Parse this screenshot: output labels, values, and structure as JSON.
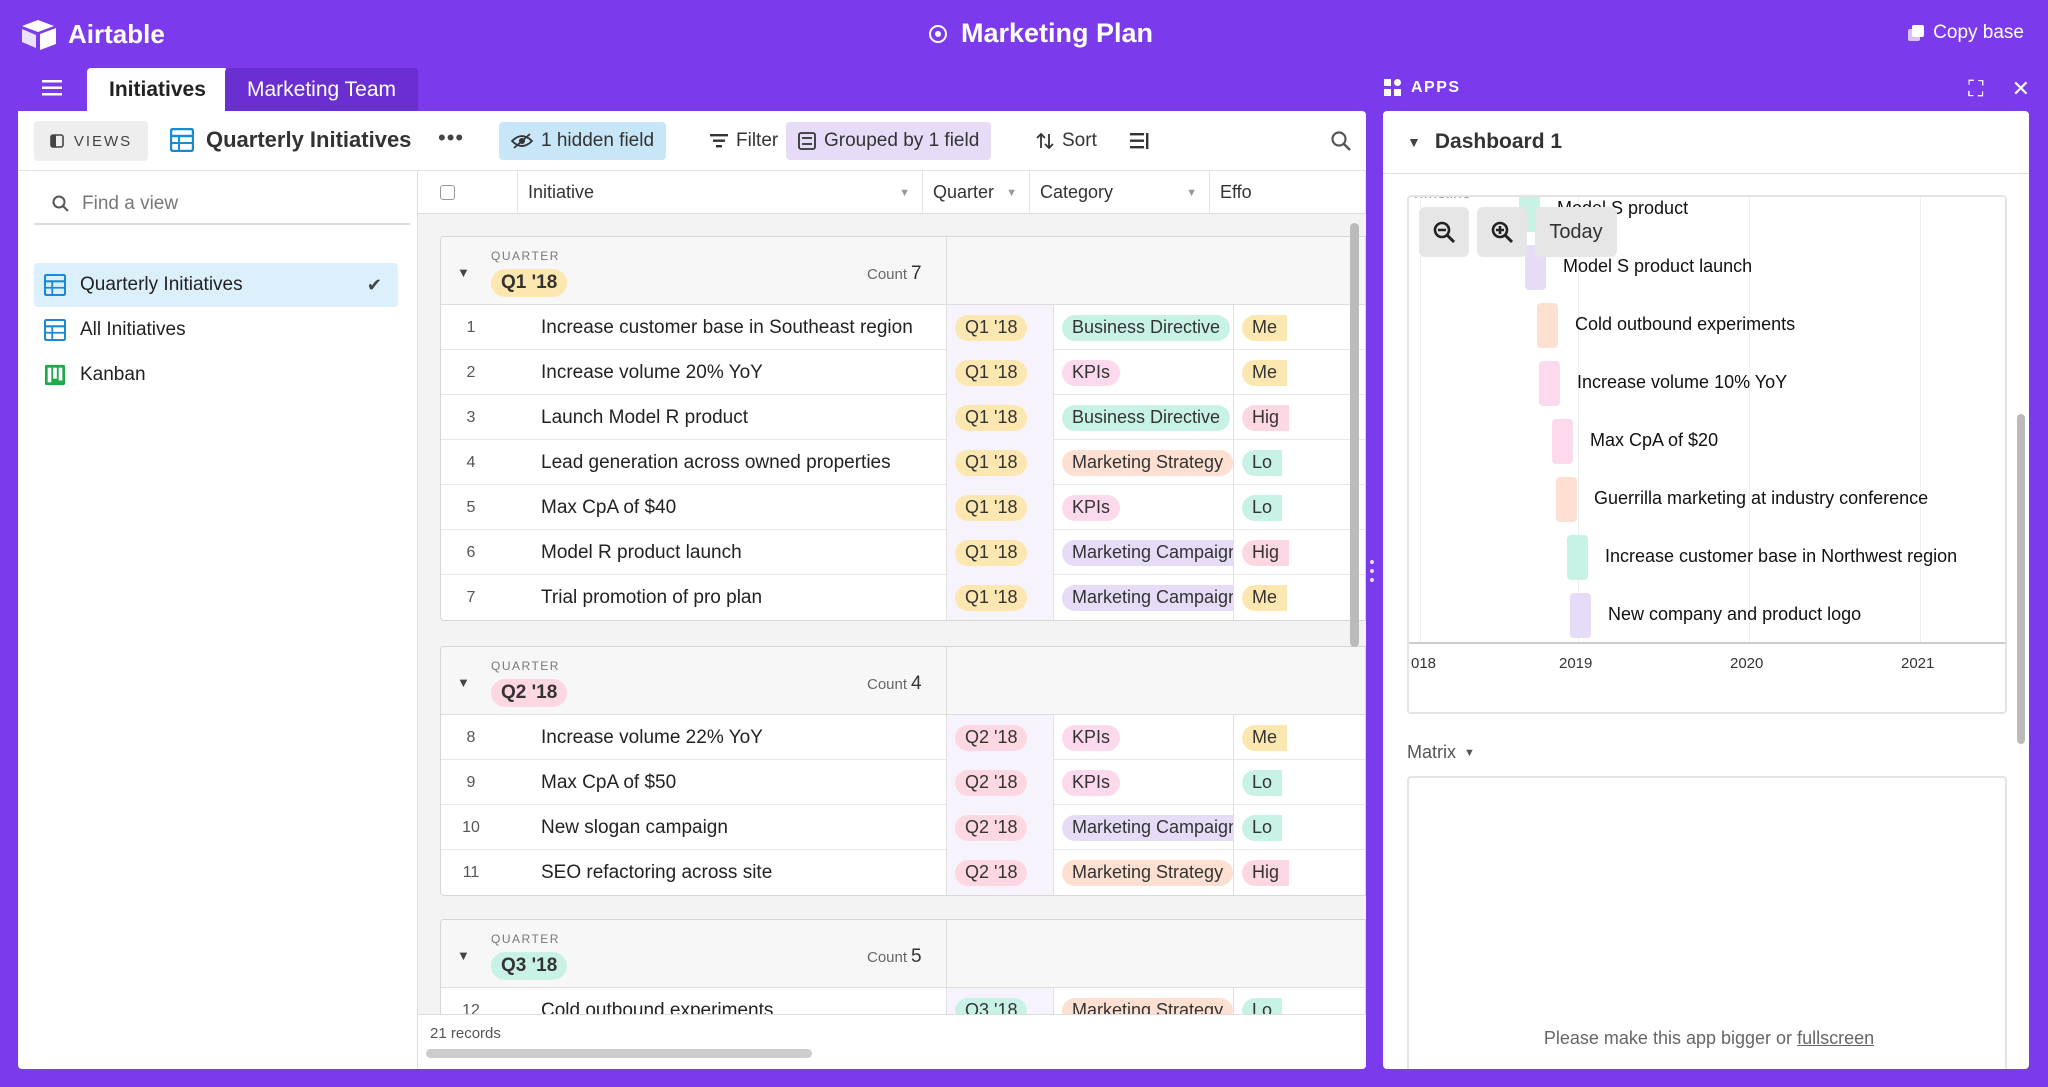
{
  "app": {
    "name": "Airtable",
    "base_title": "Marketing Plan",
    "copy_base": "Copy base"
  },
  "tabs": [
    {
      "label": "Initiatives",
      "active": true
    },
    {
      "label": "Marketing Team",
      "active": false
    }
  ],
  "toolbar": {
    "views": "VIEWS",
    "view_name": "Quarterly Initiatives",
    "hidden": "1 hidden field",
    "filter": "Filter",
    "grouped": "Grouped by 1 field",
    "sort": "Sort"
  },
  "sidebar": {
    "find_placeholder": "Find a view",
    "views": [
      {
        "label": "Quarterly Initiatives",
        "selected": true,
        "icon": "grid-icon"
      },
      {
        "label": "All Initiatives",
        "selected": false,
        "icon": "grid-icon"
      },
      {
        "label": "Kanban",
        "selected": false,
        "icon": "kanban-icon"
      }
    ]
  },
  "grid": {
    "columns": [
      "Initiative",
      "Quarter",
      "Category",
      "Effo"
    ],
    "group_label": "QUARTER",
    "count_label": "Count",
    "records": "21 records",
    "groups": [
      {
        "quarter": "Q1 '18",
        "count": "7",
        "color": "#fde7b0",
        "rows": [
          {
            "n": "1",
            "initiative": "Increase customer base in Southeast region",
            "quarter": "Q1 '18",
            "category": "Business Directive",
            "effort": "Me"
          },
          {
            "n": "2",
            "initiative": "Increase volume 20% YoY",
            "quarter": "Q1 '18",
            "category": "KPIs",
            "effort": "Me"
          },
          {
            "n": "3",
            "initiative": "Launch Model R product",
            "quarter": "Q1 '18",
            "category": "Business Directive",
            "effort": "Hig"
          },
          {
            "n": "4",
            "initiative": "Lead generation across owned properties",
            "quarter": "Q1 '18",
            "category": "Marketing Strategy",
            "effort": "Lo"
          },
          {
            "n": "5",
            "initiative": "Max CpA of $40",
            "quarter": "Q1 '18",
            "category": "KPIs",
            "effort": "Lo"
          },
          {
            "n": "6",
            "initiative": "Model R product launch",
            "quarter": "Q1 '18",
            "category": "Marketing Campaigns",
            "effort": "Hig"
          },
          {
            "n": "7",
            "initiative": "Trial promotion of pro plan",
            "quarter": "Q1 '18",
            "category": "Marketing Campaigns",
            "effort": "Me"
          }
        ]
      },
      {
        "quarter": "Q2 '18",
        "count": "4",
        "color": "#fdd7e1",
        "rows": [
          {
            "n": "8",
            "initiative": "Increase volume 22% YoY",
            "quarter": "Q2 '18",
            "category": "KPIs",
            "effort": "Me"
          },
          {
            "n": "9",
            "initiative": "Max CpA of $50",
            "quarter": "Q2 '18",
            "category": "KPIs",
            "effort": "Lo"
          },
          {
            "n": "10",
            "initiative": "New slogan campaign",
            "quarter": "Q2 '18",
            "category": "Marketing Campaigns",
            "effort": "Lo"
          },
          {
            "n": "11",
            "initiative": "SEO refactoring across site",
            "quarter": "Q2 '18",
            "category": "Marketing Strategy",
            "effort": "Hig"
          }
        ]
      },
      {
        "quarter": "Q3 '18",
        "count": "5",
        "color": "#c9f2e6",
        "rows": [
          {
            "n": "12",
            "initiative": "Cold outbound experiments",
            "quarter": "Q3 '18",
            "category": "Marketing Strategy",
            "effort": "Lo"
          }
        ]
      }
    ],
    "category_colors": {
      "Business Directive": "#c9f2e6",
      "KPIs": "#fcd9ec",
      "Marketing Strategy": "#fde0d2",
      "Marketing Campaigns": "#e6dcf7"
    },
    "effort_colors": {
      "Me": "#fde7b0",
      "Hig": "#fdd7e1",
      "Lo": "#c9f2e6"
    }
  },
  "apps": {
    "header": "APPS",
    "dashboard": "Dashboard 1",
    "timeline": {
      "cut_label": "Timeline",
      "today": "Today",
      "ticks": [
        "018",
        "2019",
        "2020",
        "2021"
      ],
      "items": [
        {
          "label": "Model S product",
          "color": "#c9f2e6"
        },
        {
          "label": "Model S product launch",
          "color": "#e6dcf7"
        },
        {
          "label": "Cold outbound experiments",
          "color": "#fde0d2"
        },
        {
          "label": "Increase volume 10% YoY",
          "color": "#fcd9ec"
        },
        {
          "label": "Max CpA of $20",
          "color": "#fcd9ec"
        },
        {
          "label": "Guerrilla marketing at industry conference",
          "color": "#fde0d2"
        },
        {
          "label": "Increase customer base in Northwest region",
          "color": "#c9f2e6"
        },
        {
          "label": "New company and product logo",
          "color": "#e6dcf7"
        }
      ]
    },
    "matrix": {
      "label": "Matrix",
      "message": "Please make this app bigger or",
      "link": "fullscreen"
    }
  }
}
